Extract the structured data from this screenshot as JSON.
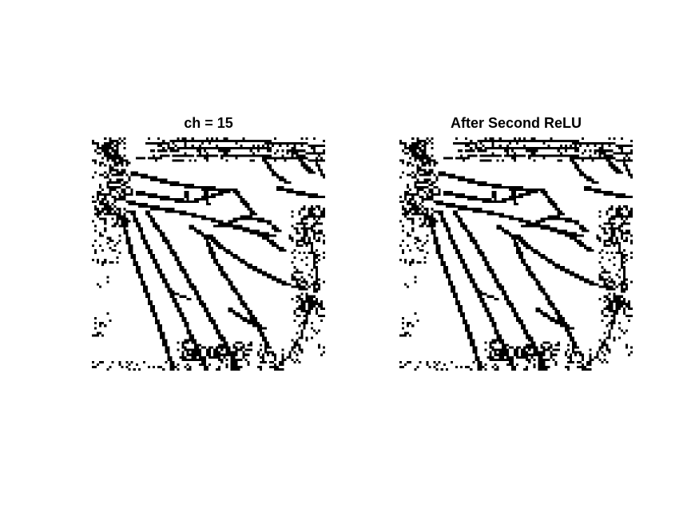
{
  "panels": [
    {
      "title": "ch = 15"
    },
    {
      "title": "After Second ReLU"
    }
  ],
  "colors": {
    "background": "#ffffff",
    "foreground": "#000000"
  }
}
